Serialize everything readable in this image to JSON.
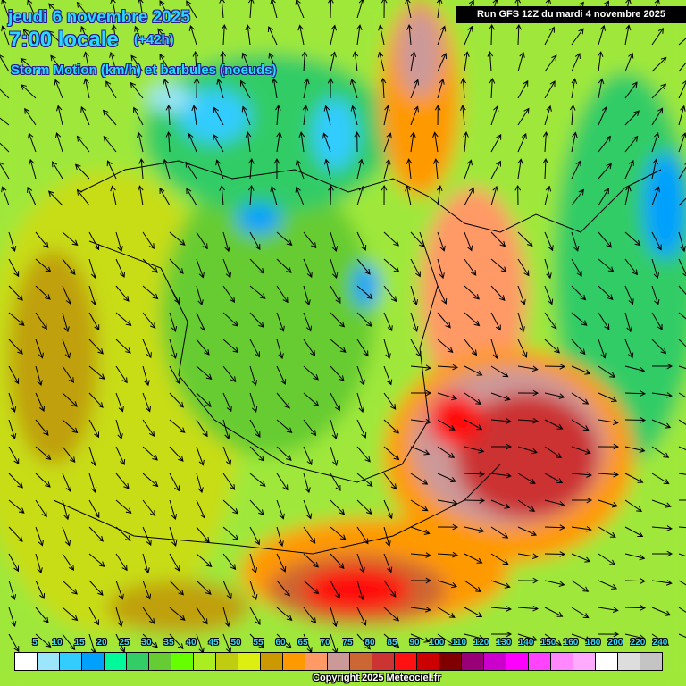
{
  "header": {
    "date": "jeudi 6 novembre 2025",
    "time": "7:00 locale",
    "lead": "(+42h)",
    "parameter": "Storm Motion (km/h) et barbules (noeuds)"
  },
  "run_label": "Run GFS 12Z du mardi 4 novembre 2025",
  "legend": {
    "labels": [
      "5",
      "10",
      "15",
      "20",
      "25",
      "30",
      "35",
      "40",
      "45",
      "50",
      "55",
      "60",
      "65",
      "70",
      "75",
      "80",
      "85",
      "90",
      "100",
      "110",
      "120",
      "130",
      "140",
      "150",
      "160",
      "180",
      "200",
      "220",
      "240"
    ],
    "colors": [
      "#ffffff",
      "#9be6fb",
      "#33ccff",
      "#00a0ff",
      "#00fa9a",
      "#33cc66",
      "#66cc33",
      "#66ff00",
      "#aaee22",
      "#c0cc10",
      "#ddee11",
      "#cc9900",
      "#ff9900",
      "#ff9966",
      "#cc9999",
      "#cc6633",
      "#cc3333",
      "#ff1111",
      "#cc0000",
      "#800000",
      "#990077",
      "#cc00cc",
      "#ff00ff",
      "#ff44ff",
      "#ff88ff",
      "#ffaaff",
      "#ffffff",
      "#dddddd",
      "#c4c4c4"
    ]
  },
  "copyright": "Copyright 2025 Meteociel.fr"
}
